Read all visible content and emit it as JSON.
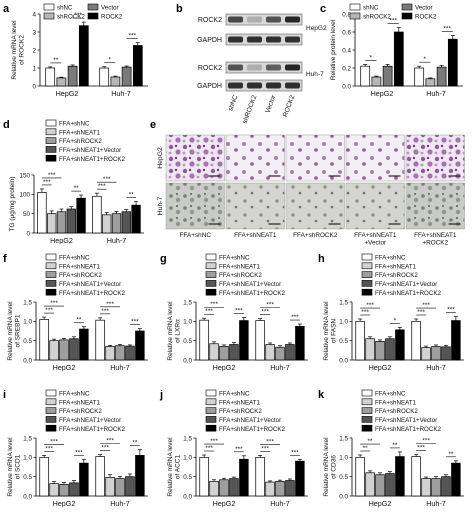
{
  "figure": {
    "panel_labels": [
      "a",
      "b",
      "c",
      "d",
      "e",
      "f",
      "g",
      "h",
      "i",
      "j",
      "k"
    ]
  },
  "legends": {
    "four_group": [
      "shNC",
      "shROCK2",
      "Vector",
      "ROCK2"
    ],
    "five_group": [
      "FFA+shNC",
      "FFA+shNEAT1",
      "FFA+shROCK2",
      "FFA+shNEAT1+Vector",
      "FFA+shNEAT1+ROCK2"
    ]
  },
  "colors": {
    "four_group": [
      "#ffffff",
      "#b7b7b7",
      "#7a7a7a",
      "#000000"
    ],
    "five_group": [
      "#ffffff",
      "#d2d2d2",
      "#9e9e9e",
      "#555555",
      "#000000"
    ]
  },
  "blots": {
    "rows": [
      "ROCK2",
      "GAPDH",
      "ROCK2",
      "GAPDH"
    ],
    "lanes": [
      "shNC",
      "shROCK2",
      "Vector",
      "ROCK2"
    ],
    "band_intensity": [
      [
        0.8,
        0.35,
        0.75,
        0.95
      ],
      [
        0.9,
        0.9,
        0.9,
        0.9
      ],
      [
        0.75,
        0.35,
        0.7,
        0.95
      ],
      [
        0.9,
        0.9,
        0.9,
        0.9
      ]
    ],
    "cell_labels": [
      "HepG2",
      "Huh-7"
    ]
  },
  "micrographs": {
    "row_labels": [
      "HepG2",
      "Huh-7"
    ],
    "captions": [
      "FFA+shNC",
      "FFA+shNEAT1",
      "FFA+shROCK2",
      "FFA+shNEAT1\n+Vector",
      "FFA+shNEAT1\n+ROCK2"
    ]
  },
  "chart_data": [
    {
      "panel": "a",
      "type": "bar",
      "categories": [
        "HepG2",
        "Huh-7"
      ],
      "ylabel": "Relative mRNA level\nof ROCK2",
      "ylim": [
        0,
        4
      ],
      "yticks": [
        0,
        1,
        2,
        3,
        4
      ],
      "series": [
        {
          "name": "shNC",
          "values": [
            1.0,
            1.0
          ],
          "err": [
            0.06,
            0.07
          ]
        },
        {
          "name": "shROCK2",
          "values": [
            0.45,
            0.5
          ],
          "err": [
            0.04,
            0.05
          ]
        },
        {
          "name": "Vector",
          "values": [
            1.1,
            1.05
          ],
          "err": [
            0.07,
            0.06
          ]
        },
        {
          "name": "ROCK2",
          "values": [
            3.35,
            2.25
          ],
          "err": [
            0.2,
            0.16
          ]
        }
      ],
      "significance": [
        {
          "cat": 0,
          "from": 0,
          "to": 1,
          "text": "**"
        },
        {
          "cat": 0,
          "from": 2,
          "to": 3,
          "text": "***"
        },
        {
          "cat": 1,
          "from": 0,
          "to": 1,
          "text": "*"
        },
        {
          "cat": 1,
          "from": 2,
          "to": 3,
          "text": "***"
        }
      ]
    },
    {
      "panel": "c",
      "type": "bar",
      "categories": [
        "HepG2",
        "Huh-7"
      ],
      "ylabel": "Relative protein level",
      "ylim": [
        0,
        0.8
      ],
      "yticks": [
        0.0,
        0.2,
        0.4,
        0.6,
        0.8
      ],
      "series": [
        {
          "name": "shNC",
          "values": [
            0.22,
            0.2
          ],
          "err": [
            0.02,
            0.02
          ]
        },
        {
          "name": "shROCK2",
          "values": [
            0.1,
            0.08
          ],
          "err": [
            0.01,
            0.01
          ]
        },
        {
          "name": "Vector",
          "values": [
            0.22,
            0.21
          ],
          "err": [
            0.02,
            0.02
          ]
        },
        {
          "name": "ROCK2",
          "values": [
            0.6,
            0.52
          ],
          "err": [
            0.05,
            0.04
          ]
        }
      ],
      "significance": [
        {
          "cat": 0,
          "from": 0,
          "to": 1,
          "text": "*"
        },
        {
          "cat": 0,
          "from": 2,
          "to": 3,
          "text": "***"
        },
        {
          "cat": 1,
          "from": 0,
          "to": 1,
          "text": "*"
        },
        {
          "cat": 1,
          "from": 2,
          "to": 3,
          "text": "***"
        }
      ]
    },
    {
      "panel": "d",
      "type": "bar",
      "categories": [
        "HepG2",
        "Huh-7"
      ],
      "ylabel": "TG (μg/mg protein)",
      "ylim": [
        0,
        150
      ],
      "yticks": [
        0,
        50,
        100,
        150
      ],
      "series": [
        {
          "name": "FFA+shNC",
          "values": [
            105,
            95
          ],
          "err": [
            9,
            8
          ]
        },
        {
          "name": "FFA+shNEAT1",
          "values": [
            50,
            47
          ],
          "err": [
            7,
            6
          ]
        },
        {
          "name": "FFA+shROCK2",
          "values": [
            55,
            50
          ],
          "err": [
            7,
            6
          ]
        },
        {
          "name": "FFA+shNEAT1+Vector",
          "values": [
            62,
            55
          ],
          "err": [
            6,
            6
          ]
        },
        {
          "name": "FFA+shNEAT1+ROCK2",
          "values": [
            90,
            72
          ],
          "err": [
            8,
            9
          ]
        }
      ],
      "significance": [
        {
          "cat": 0,
          "from": 0,
          "to": 1,
          "text": "***"
        },
        {
          "cat": 0,
          "from": 0,
          "to": 2,
          "text": "***"
        },
        {
          "cat": 0,
          "from": 3,
          "to": 4,
          "text": "**"
        },
        {
          "cat": 1,
          "from": 0,
          "to": 1,
          "text": "***"
        },
        {
          "cat": 1,
          "from": 0,
          "to": 2,
          "text": "***"
        },
        {
          "cat": 1,
          "from": 3,
          "to": 4,
          "text": "**"
        }
      ]
    },
    {
      "panel": "f",
      "type": "bar",
      "categories": [
        "HepG2",
        "Huh-7"
      ],
      "ylabel": "Relative mRNA level\nof SREBP1",
      "ylim": [
        0,
        1.5
      ],
      "yticks": [
        0.0,
        0.5,
        1.0,
        1.5
      ],
      "series": [
        {
          "name": "FFA+shNC",
          "values": [
            1.05,
            1.03
          ],
          "err": [
            0.06,
            0.06
          ]
        },
        {
          "name": "FFA+shNEAT1",
          "values": [
            0.5,
            0.35
          ],
          "err": [
            0.04,
            0.03
          ]
        },
        {
          "name": "FFA+shROCK2",
          "values": [
            0.52,
            0.37
          ],
          "err": [
            0.04,
            0.03
          ]
        },
        {
          "name": "FFA+shNEAT1+Vector",
          "values": [
            0.55,
            0.36
          ],
          "err": [
            0.05,
            0.03
          ]
        },
        {
          "name": "FFA+shNEAT1+ROCK2",
          "values": [
            0.8,
            0.75
          ],
          "err": [
            0.06,
            0.06
          ]
        }
      ],
      "significance": [
        {
          "cat": 0,
          "from": 0,
          "to": 1,
          "text": "***"
        },
        {
          "cat": 0,
          "from": 0,
          "to": 2,
          "text": "***"
        },
        {
          "cat": 0,
          "from": 3,
          "to": 4,
          "text": "**"
        },
        {
          "cat": 1,
          "from": 0,
          "to": 1,
          "text": "***"
        },
        {
          "cat": 1,
          "from": 0,
          "to": 2,
          "text": "***"
        },
        {
          "cat": 1,
          "from": 3,
          "to": 4,
          "text": "***"
        }
      ]
    },
    {
      "panel": "g",
      "type": "bar",
      "categories": [
        "HepG2",
        "Huh-7"
      ],
      "ylabel": "Relative mRNA level\nof LXRα",
      "ylim": [
        0,
        1.5
      ],
      "yticks": [
        0.0,
        0.5,
        1.0,
        1.5
      ],
      "series": [
        {
          "name": "FFA+shNC",
          "values": [
            1.03,
            1.02
          ],
          "err": [
            0.05,
            0.05
          ]
        },
        {
          "name": "FFA+shNEAT1",
          "values": [
            0.42,
            0.4
          ],
          "err": [
            0.05,
            0.04
          ]
        },
        {
          "name": "FFA+shROCK2",
          "values": [
            0.35,
            0.33
          ],
          "err": [
            0.04,
            0.04
          ]
        },
        {
          "name": "FFA+shNEAT1+Vector",
          "values": [
            0.4,
            0.4
          ],
          "err": [
            0.05,
            0.04
          ]
        },
        {
          "name": "FFA+shNEAT1+ROCK2",
          "values": [
            1.02,
            0.87
          ],
          "err": [
            0.08,
            0.06
          ]
        }
      ],
      "significance": [
        {
          "cat": 0,
          "from": 0,
          "to": 1,
          "text": "***"
        },
        {
          "cat": 0,
          "from": 0,
          "to": 2,
          "text": "***"
        },
        {
          "cat": 0,
          "from": 3,
          "to": 4,
          "text": "***"
        },
        {
          "cat": 1,
          "from": 0,
          "to": 1,
          "text": "***"
        },
        {
          "cat": 1,
          "from": 0,
          "to": 2,
          "text": "***"
        },
        {
          "cat": 1,
          "from": 3,
          "to": 4,
          "text": "***"
        }
      ]
    },
    {
      "panel": "h",
      "type": "bar",
      "categories": [
        "HepG2",
        "Huh-7"
      ],
      "ylabel": "Relative mRNA level\nof FASN",
      "ylim": [
        0,
        1.5
      ],
      "yticks": [
        0.0,
        0.5,
        1.0,
        1.5
      ],
      "series": [
        {
          "name": "FFA+shNC",
          "values": [
            1.0,
            1.0
          ],
          "err": [
            0.06,
            0.06
          ]
        },
        {
          "name": "FFA+shNEAT1",
          "values": [
            0.55,
            0.32
          ],
          "err": [
            0.05,
            0.04
          ]
        },
        {
          "name": "FFA+shROCK2",
          "values": [
            0.48,
            0.35
          ],
          "err": [
            0.04,
            0.04
          ]
        },
        {
          "name": "FFA+shNEAT1+Vector",
          "values": [
            0.55,
            0.34
          ],
          "err": [
            0.05,
            0.04
          ]
        },
        {
          "name": "FFA+shNEAT1+ROCK2",
          "values": [
            0.78,
            1.02
          ],
          "err": [
            0.06,
            0.1
          ]
        }
      ],
      "significance": [
        {
          "cat": 0,
          "from": 0,
          "to": 1,
          "text": "***"
        },
        {
          "cat": 0,
          "from": 0,
          "to": 2,
          "text": "***"
        },
        {
          "cat": 0,
          "from": 3,
          "to": 4,
          "text": "*"
        },
        {
          "cat": 1,
          "from": 0,
          "to": 1,
          "text": "***"
        },
        {
          "cat": 1,
          "from": 0,
          "to": 2,
          "text": "***"
        },
        {
          "cat": 1,
          "from": 3,
          "to": 4,
          "text": "***"
        }
      ]
    },
    {
      "panel": "i",
      "type": "bar",
      "categories": [
        "HepG2",
        "Huh-7"
      ],
      "ylabel": "Relative mRNA level\nof SCD1",
      "ylim": [
        0,
        1.5
      ],
      "yticks": [
        0.0,
        0.5,
        1.0,
        1.5
      ],
      "series": [
        {
          "name": "FFA+shNC",
          "values": [
            1.0,
            1.02
          ],
          "err": [
            0.05,
            0.05
          ]
        },
        {
          "name": "FFA+shNEAT1",
          "values": [
            0.32,
            0.48
          ],
          "err": [
            0.06,
            0.07
          ]
        },
        {
          "name": "FFA+shROCK2",
          "values": [
            0.3,
            0.45
          ],
          "err": [
            0.05,
            0.06
          ]
        },
        {
          "name": "FFA+shNEAT1+Vector",
          "values": [
            0.34,
            0.5
          ],
          "err": [
            0.06,
            0.07
          ]
        },
        {
          "name": "FFA+shNEAT1+ROCK2",
          "values": [
            0.85,
            1.05
          ],
          "err": [
            0.1,
            0.15
          ]
        }
      ],
      "significance": [
        {
          "cat": 0,
          "from": 0,
          "to": 1,
          "text": "***"
        },
        {
          "cat": 0,
          "from": 0,
          "to": 2,
          "text": "***"
        },
        {
          "cat": 0,
          "from": 3,
          "to": 4,
          "text": "***"
        },
        {
          "cat": 1,
          "from": 0,
          "to": 1,
          "text": "***"
        },
        {
          "cat": 1,
          "from": 0,
          "to": 2,
          "text": "***"
        },
        {
          "cat": 1,
          "from": 3,
          "to": 4,
          "text": "**"
        }
      ]
    },
    {
      "panel": "j",
      "type": "bar",
      "categories": [
        "HepG2",
        "Huh-7"
      ],
      "ylabel": "Relative mRNA level\nof ACC1",
      "ylim": [
        0,
        1.5
      ],
      "yticks": [
        0.0,
        0.5,
        1.0,
        1.5
      ],
      "series": [
        {
          "name": "FFA+shNC",
          "values": [
            1.0,
            1.0
          ],
          "err": [
            0.06,
            0.05
          ]
        },
        {
          "name": "FFA+shNEAT1",
          "values": [
            0.38,
            0.36
          ],
          "err": [
            0.04,
            0.03
          ]
        },
        {
          "name": "FFA+shROCK2",
          "values": [
            0.42,
            0.38
          ],
          "err": [
            0.04,
            0.03
          ]
        },
        {
          "name": "FFA+shNEAT1+Vector",
          "values": [
            0.45,
            0.4
          ],
          "err": [
            0.04,
            0.04
          ]
        },
        {
          "name": "FFA+shNEAT1+ROCK2",
          "values": [
            0.95,
            0.9
          ],
          "err": [
            0.09,
            0.05
          ]
        }
      ],
      "significance": [
        {
          "cat": 0,
          "from": 0,
          "to": 1,
          "text": "***"
        },
        {
          "cat": 0,
          "from": 0,
          "to": 2,
          "text": "***"
        },
        {
          "cat": 0,
          "from": 3,
          "to": 4,
          "text": "***"
        },
        {
          "cat": 1,
          "from": 0,
          "to": 1,
          "text": "***"
        },
        {
          "cat": 1,
          "from": 0,
          "to": 2,
          "text": "***"
        },
        {
          "cat": 1,
          "from": 3,
          "to": 4,
          "text": "***"
        }
      ]
    },
    {
      "panel": "k",
      "type": "bar",
      "categories": [
        "HepG2",
        "Huh-7"
      ],
      "ylabel": "Relative mRNA level\nof CD36",
      "ylim": [
        0,
        1.5
      ],
      "yticks": [
        0.0,
        0.5,
        1.0,
        1.5
      ],
      "series": [
        {
          "name": "FFA+shNC",
          "values": [
            1.0,
            1.02
          ],
          "err": [
            0.06,
            0.05
          ]
        },
        {
          "name": "FFA+shNEAT1",
          "values": [
            0.6,
            0.45
          ],
          "err": [
            0.05,
            0.04
          ]
        },
        {
          "name": "FFA+shROCK2",
          "values": [
            0.55,
            0.45
          ],
          "err": [
            0.05,
            0.05
          ]
        },
        {
          "name": "FFA+shNEAT1+Vector",
          "values": [
            0.58,
            0.5
          ],
          "err": [
            0.05,
            0.05
          ]
        },
        {
          "name": "FFA+shNEAT1+ROCK2",
          "values": [
            1.02,
            0.85
          ],
          "err": [
            0.12,
            0.06
          ]
        }
      ],
      "significance": [
        {
          "cat": 0,
          "from": 0,
          "to": 1,
          "text": "**"
        },
        {
          "cat": 0,
          "from": 0,
          "to": 2,
          "text": "**"
        },
        {
          "cat": 0,
          "from": 3,
          "to": 4,
          "text": "**"
        },
        {
          "cat": 1,
          "from": 0,
          "to": 1,
          "text": "***"
        },
        {
          "cat": 1,
          "from": 0,
          "to": 2,
          "text": "***"
        },
        {
          "cat": 1,
          "from": 3,
          "to": 4,
          "text": "**"
        }
      ]
    }
  ]
}
